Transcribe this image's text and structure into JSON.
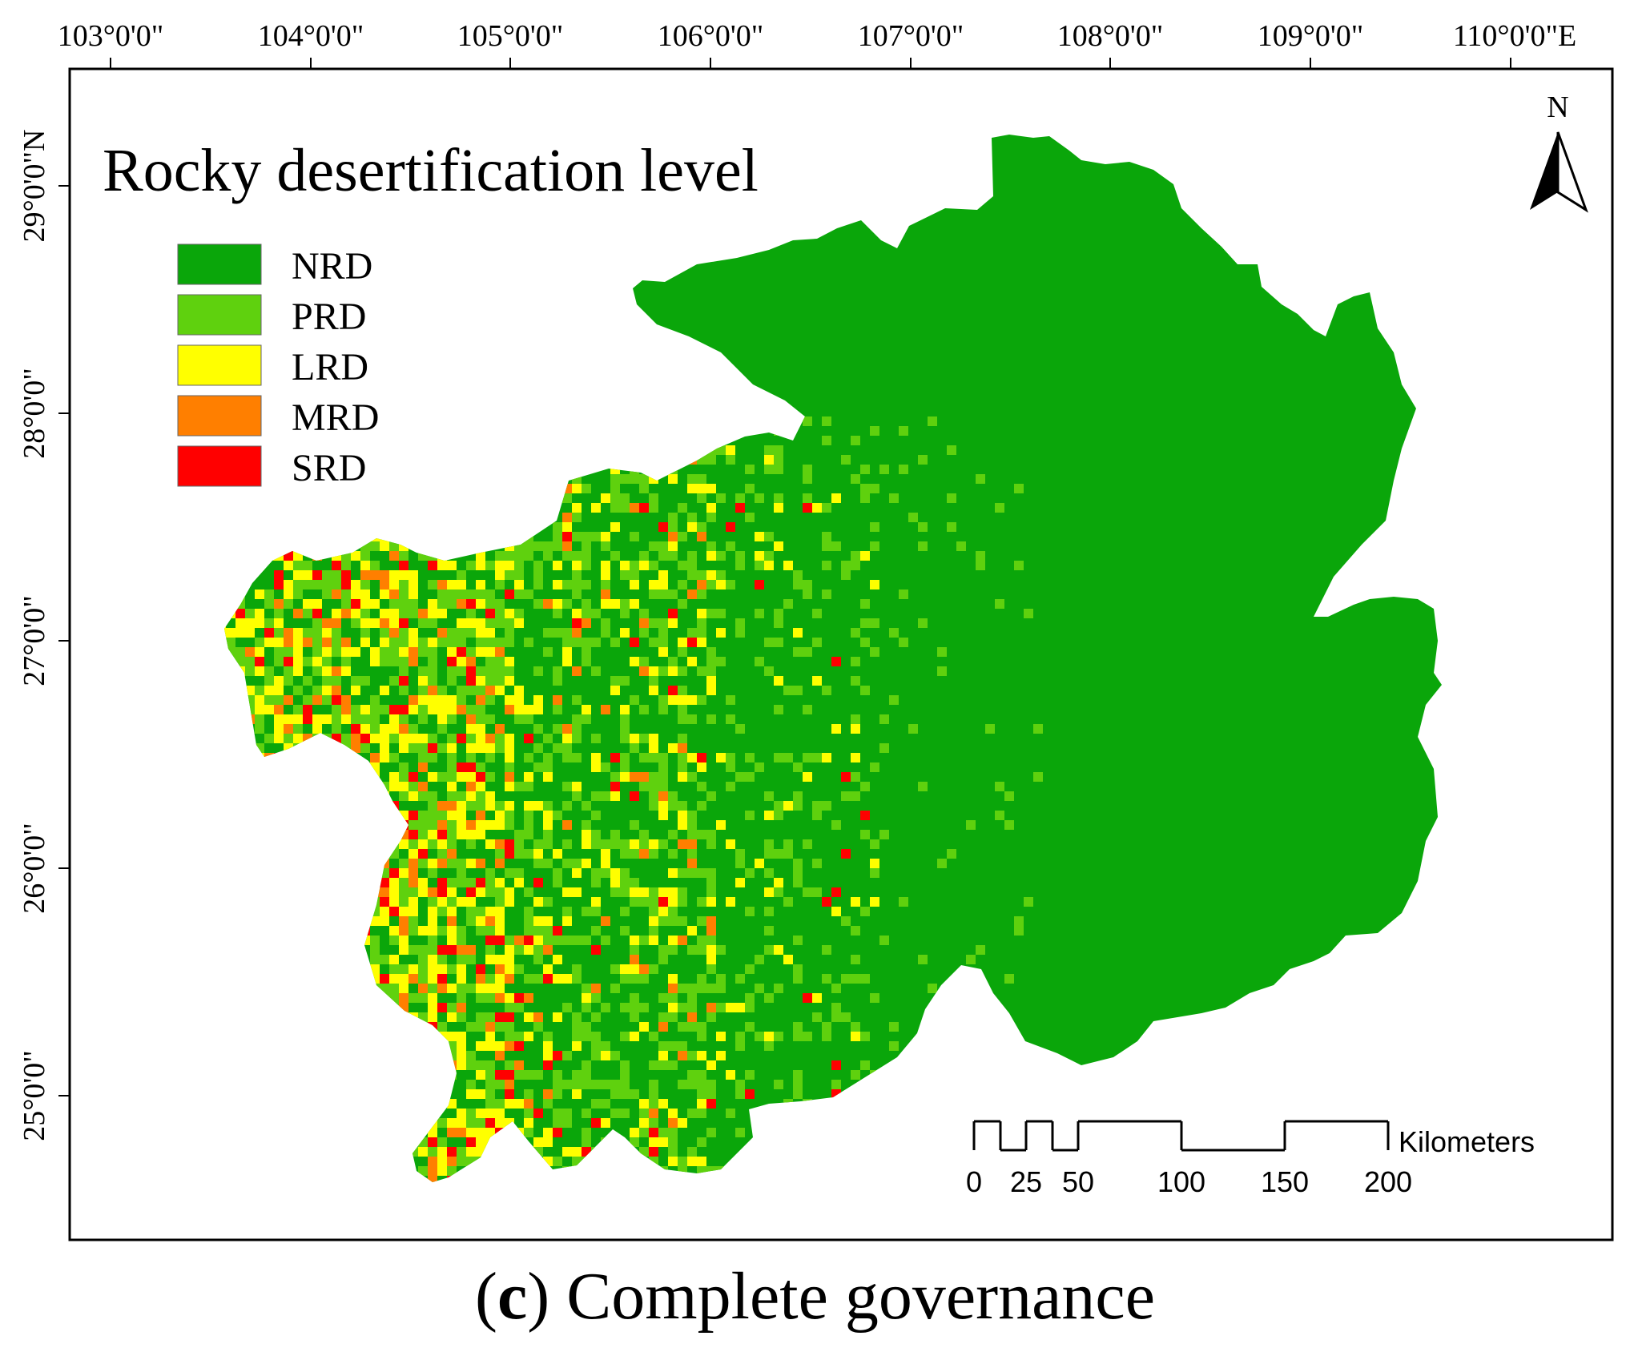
{
  "title": "Rocky desertification level",
  "caption": {
    "letter": "c",
    "text": "Complete governance"
  },
  "north_arrow": {
    "label": "N"
  },
  "longitude_ticks": [
    "103°0'0\"",
    "104°0'0\"",
    "105°0'0\"",
    "106°0'0\"",
    "107°0'0\"",
    "108°0'0\"",
    "109°0'0\"",
    "110°0'0\"E"
  ],
  "latitude_ticks": [
    "29°0'0\"N",
    "28°0'0\"",
    "27°0'0\"",
    "26°0'0\"",
    "25°0'0\""
  ],
  "legend": [
    {
      "code": "NRD",
      "color": "#0aa60a"
    },
    {
      "code": "PRD",
      "color": "#5fd10e"
    },
    {
      "code": "LRD",
      "color": "#ffff00"
    },
    {
      "code": "MRD",
      "color": "#ff7f00"
    },
    {
      "code": "SRD",
      "color": "#ff0000"
    }
  ],
  "scale_bar": {
    "unit": "Kilometers",
    "labels": [
      "0",
      "25",
      "50",
      "100",
      "150",
      "200"
    ]
  }
}
